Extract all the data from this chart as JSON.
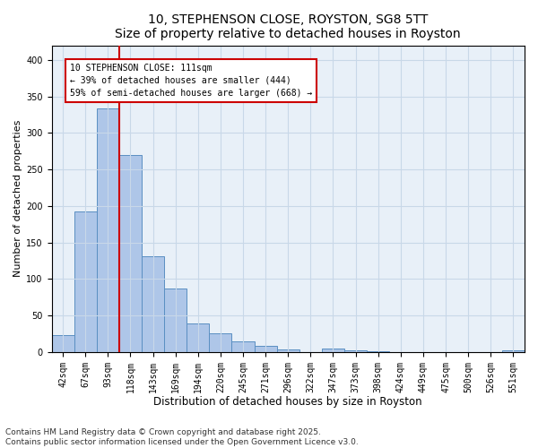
{
  "title1": "10, STEPHENSON CLOSE, ROYSTON, SG8 5TT",
  "title2": "Size of property relative to detached houses in Royston",
  "xlabel": "Distribution of detached houses by size in Royston",
  "ylabel": "Number of detached properties",
  "footnote": "Contains HM Land Registry data © Crown copyright and database right 2025.\nContains public sector information licensed under the Open Government Licence v3.0.",
  "categories": [
    "42sqm",
    "67sqm",
    "93sqm",
    "118sqm",
    "143sqm",
    "169sqm",
    "194sqm",
    "220sqm",
    "245sqm",
    "271sqm",
    "296sqm",
    "322sqm",
    "347sqm",
    "373sqm",
    "398sqm",
    "424sqm",
    "449sqm",
    "475sqm",
    "500sqm",
    "526sqm",
    "551sqm"
  ],
  "values": [
    23,
    193,
    333,
    270,
    131,
    87,
    39,
    25,
    14,
    8,
    4,
    0,
    5,
    2,
    1,
    0,
    0,
    0,
    0,
    0,
    2
  ],
  "bar_color": "#aec6e8",
  "bar_edge_color": "#5a8fc2",
  "annotation_line1": "10 STEPHENSON CLOSE: 111sqm",
  "annotation_line2": "← 39% of detached houses are smaller (444)",
  "annotation_line3": "59% of semi-detached houses are larger (668) →",
  "annotation_box_color": "#ffffff",
  "annotation_box_edge": "#cc0000",
  "vline_color": "#cc0000",
  "vline_x_index": 2.5,
  "ylim": [
    0,
    420
  ],
  "yticks": [
    0,
    50,
    100,
    150,
    200,
    250,
    300,
    350,
    400
  ],
  "grid_color": "#c8d8e8",
  "bg_color": "#e8f0f8",
  "fig_bg_color": "#ffffff",
  "title1_fontsize": 10,
  "title2_fontsize": 9,
  "xlabel_fontsize": 8.5,
  "ylabel_fontsize": 8,
  "tick_fontsize": 7,
  "annotation_fontsize": 7,
  "footnote_fontsize": 6.5
}
